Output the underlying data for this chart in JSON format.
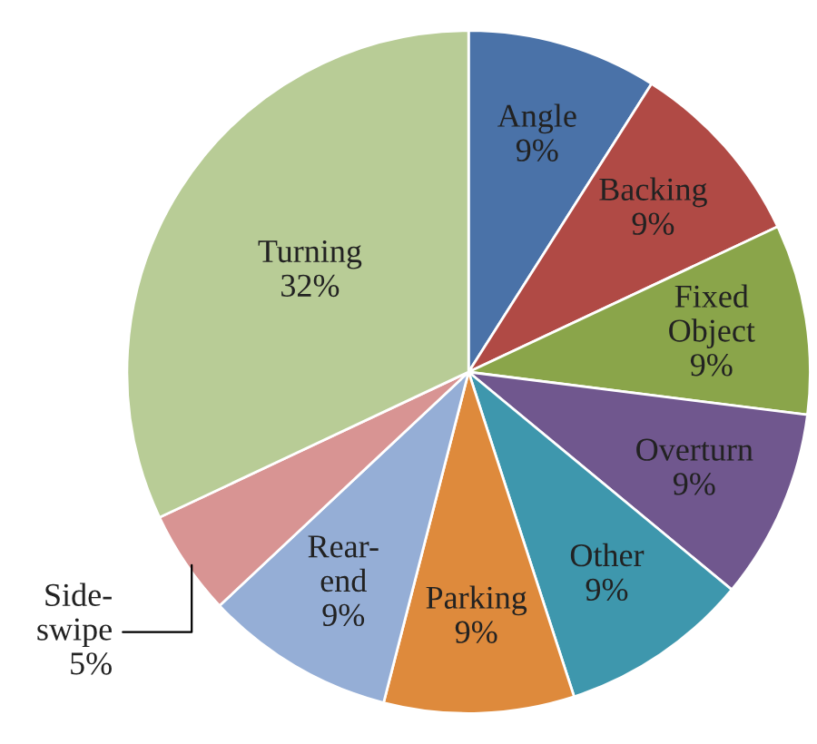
{
  "chart_data": {
    "type": "pie",
    "categories": [
      "Angle",
      "Backing",
      "Fixed\nObject",
      "Overturn",
      "Other",
      "Parking",
      "Rear-\nend",
      "Side-\nswipe",
      "Turning"
    ],
    "values": [
      9,
      9,
      9,
      9,
      9,
      9,
      9,
      5,
      32
    ],
    "colors": [
      "#4a72a8",
      "#b04a45",
      "#8aa54a",
      "#70578e",
      "#3e97ad",
      "#de8a3c",
      "#95aed6",
      "#d89493",
      "#b8cc96"
    ],
    "value_labels": [
      "9%",
      "9%",
      "9%",
      "9%",
      "9%",
      "9%",
      "9%",
      "5%",
      "32%"
    ],
    "legend": false
  }
}
